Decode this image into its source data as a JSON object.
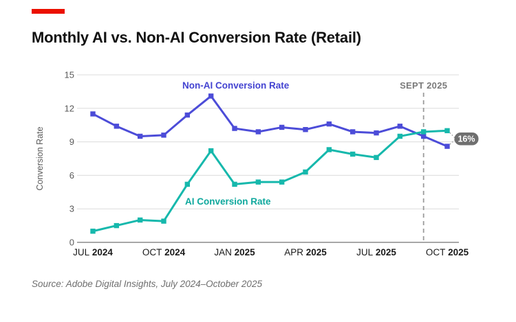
{
  "title": "Monthly AI vs. Non-AI Conversion Rate (Retail)",
  "source_note": "Source: Adobe Digital Insights, July 2024–October 2025",
  "colors": {
    "accent_bar": "#EB1000",
    "non_ai_line": "#4C4CD8",
    "non_ai_label": "#4343D1",
    "ai_line": "#16B8AC",
    "ai_label": "#0EA89D",
    "gridline": "#DCDCDC",
    "axis_line": "#8A8A8A",
    "tick_text": "#5A5A5A",
    "x_tick_text": "#1A1A1A",
    "vline": "#9B9B9B",
    "vline_label": "#7A7A7A",
    "badge_bg": "#6F6F6F",
    "badge_text": "#FFFFFF"
  },
  "chart_data": {
    "type": "line",
    "title": "Monthly AI vs. Non-AI Conversion Rate (Retail)",
    "xlabel": "",
    "ylabel": "Conversion Rate",
    "ylim": [
      0,
      15
    ],
    "yticks": [
      0,
      3,
      6,
      9,
      12,
      15
    ],
    "grid": true,
    "legend_position": "inline-labels",
    "x": [
      "Jul 2024",
      "Aug 2024",
      "Sep 2024",
      "Oct 2024",
      "Nov 2024",
      "Dec 2024",
      "Jan 2025",
      "Feb 2025",
      "Mar 2025",
      "Apr 2025",
      "May 2025",
      "Jun 2025",
      "Jul 2025",
      "Aug 2025",
      "Sep 2025",
      "Oct 2025"
    ],
    "xticks": [
      {
        "index": 0,
        "month": "JUL",
        "year": "2024"
      },
      {
        "index": 3,
        "month": "OCT",
        "year": "2024"
      },
      {
        "index": 6,
        "month": "JAN",
        "year": "2025"
      },
      {
        "index": 9,
        "month": "APR",
        "year": "2025"
      },
      {
        "index": 12,
        "month": "JUL",
        "year": "2025"
      },
      {
        "index": 15,
        "month": "OCT",
        "year": "2025"
      }
    ],
    "series": [
      {
        "name": "Non-AI Conversion Rate",
        "color": "#4C4CD8",
        "values": [
          11.5,
          10.4,
          9.5,
          9.6,
          11.4,
          13.1,
          10.2,
          9.9,
          10.3,
          10.1,
          10.6,
          9.9,
          9.8,
          10.4,
          9.5,
          8.6
        ]
      },
      {
        "name": "AI Conversion Rate",
        "color": "#16B8AC",
        "values": [
          1.0,
          1.5,
          2.0,
          1.9,
          5.2,
          8.2,
          5.2,
          5.4,
          5.4,
          6.3,
          8.3,
          7.9,
          7.6,
          9.5,
          9.9,
          10.0
        ]
      }
    ],
    "annotations": {
      "vline": {
        "x": "Sep 2025",
        "index": 14,
        "label": "SEPT 2025"
      },
      "badge": {
        "text": "16%"
      }
    }
  }
}
